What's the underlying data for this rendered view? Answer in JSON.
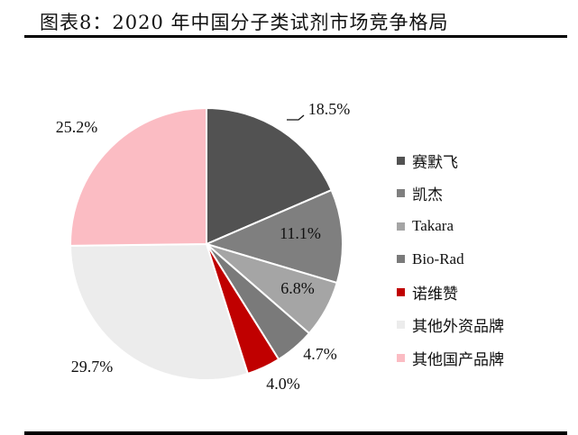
{
  "header": {
    "title": "图表8：2020 年中国分子类试剂市场竞争格局"
  },
  "chart_data": {
    "type": "pie",
    "title": "图表8：2020 年中国分子类试剂市场竞争格局",
    "categories": [
      "赛默飞",
      "凯杰",
      "Takara",
      "Bio-Rad",
      "诺维赞",
      "其他外资品牌",
      "其他国产品牌"
    ],
    "values": [
      18.5,
      11.1,
      6.8,
      4.7,
      4.0,
      29.7,
      25.2
    ],
    "labels": [
      "18.5%",
      "11.1%",
      "6.8%",
      "4.7%",
      "4.0%",
      "29.7%",
      "25.2%"
    ],
    "colors": [
      "#525252",
      "#7f7f7f",
      "#a5a5a5",
      "#7a7a7a",
      "#c00000",
      "#ececec",
      "#fbbcc3"
    ],
    "legend_position": "right",
    "start_angle": "12 o'clock, clockwise"
  },
  "legend": {
    "items": [
      {
        "label": "赛默飞",
        "color": "#525252"
      },
      {
        "label": "凯杰",
        "color": "#7f7f7f"
      },
      {
        "label": "Takara",
        "color": "#a5a5a5"
      },
      {
        "label": "Bio-Rad",
        "color": "#7a7a7a"
      },
      {
        "label": "诺维赞",
        "color": "#c00000"
      },
      {
        "label": "其他外资品牌",
        "color": "#ececec"
      },
      {
        "label": "其他国产品牌",
        "color": "#fbbcc3"
      }
    ]
  }
}
